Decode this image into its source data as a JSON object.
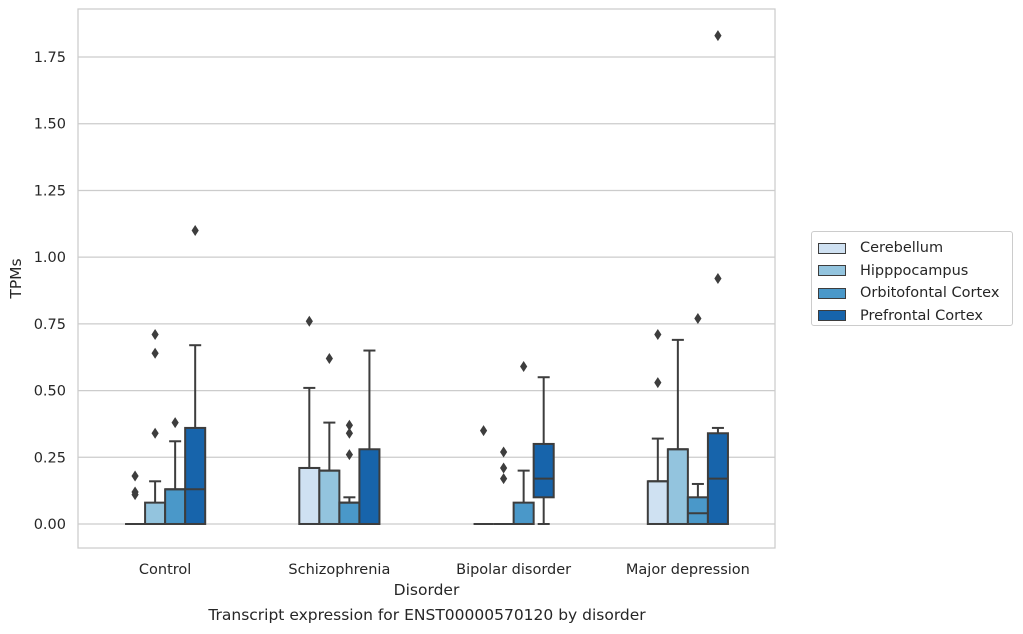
{
  "caption": "Transcript expression for ENST00000570120 by disorder",
  "legend": {
    "items": [
      {
        "label": "Cerebellum",
        "color": "#cfe1f2"
      },
      {
        "label": "Hipppocampus",
        "color": "#93c4de"
      },
      {
        "label": "Orbitofontal Cortex",
        "color": "#4a98c9"
      },
      {
        "label": "Prefrontal Cortex",
        "color": "#1764ab"
      }
    ]
  },
  "chart_data": {
    "type": "box",
    "xlabel": "Disorder",
    "ylabel": "TPMs",
    "ylim": [
      -0.09,
      1.93
    ],
    "yticks": [
      "0.00",
      "0.25",
      "0.50",
      "0.75",
      "1.00",
      "1.25",
      "1.50",
      "1.75"
    ],
    "categories": [
      "Control",
      "Schizophrenia",
      "Bipolar disorder",
      "Major depression"
    ],
    "grid": "horizontal",
    "legend_position": "right",
    "series": [
      {
        "name": "Cerebellum",
        "color": "#cfe1f2",
        "boxes": [
          {
            "q1": 0,
            "median": 0,
            "q3": 0,
            "whislo": 0,
            "whishi": 0,
            "fliers": [
              0.18,
              0.12,
              0.11
            ]
          },
          {
            "q1": 0,
            "median": 0.21,
            "q3": 0.21,
            "whislo": 0,
            "whishi": 0.51,
            "fliers": [
              0.76
            ]
          },
          {
            "q1": 0,
            "median": 0,
            "q3": 0,
            "whislo": 0,
            "whishi": 0,
            "fliers": [
              0.35
            ]
          },
          {
            "q1": 0,
            "median": 0.16,
            "q3": 0.16,
            "whislo": 0,
            "whishi": 0.32,
            "fliers": [
              0.71,
              0.53
            ]
          }
        ]
      },
      {
        "name": "Hipppocampus",
        "color": "#93c4de",
        "boxes": [
          {
            "q1": 0,
            "median": 0,
            "q3": 0.08,
            "whislo": 0,
            "whishi": 0.16,
            "fliers": [
              0.71,
              0.64,
              0.34
            ]
          },
          {
            "q1": 0,
            "median": 0.2,
            "q3": 0.2,
            "whislo": 0,
            "whishi": 0.38,
            "fliers": [
              0.62
            ]
          },
          {
            "q1": 0,
            "median": 0,
            "q3": 0,
            "whislo": 0,
            "whishi": 0,
            "fliers": [
              0.27,
              0.21,
              0.17
            ]
          },
          {
            "q1": 0,
            "median": 0.28,
            "q3": 0.28,
            "whislo": 0,
            "whishi": 0.69,
            "fliers": []
          }
        ]
      },
      {
        "name": "Orbitofontal Cortex",
        "color": "#4a98c9",
        "boxes": [
          {
            "q1": 0,
            "median": 0.13,
            "q3": 0.13,
            "whislo": 0,
            "whishi": 0.31,
            "fliers": [
              0.38
            ]
          },
          {
            "q1": 0,
            "median": 0.08,
            "q3": 0.08,
            "whislo": 0,
            "whishi": 0.1,
            "fliers": [
              0.37,
              0.34,
              0.26
            ]
          },
          {
            "q1": 0,
            "median": 0,
            "q3": 0.08,
            "whislo": 0,
            "whishi": 0.2,
            "fliers": [
              0.59
            ]
          },
          {
            "q1": 0,
            "median": 0.04,
            "q3": 0.1,
            "whislo": 0,
            "whishi": 0.15,
            "fliers": [
              0.77
            ]
          }
        ]
      },
      {
        "name": "Prefrontal Cortex",
        "color": "#1764ab",
        "boxes": [
          {
            "q1": 0,
            "median": 0.13,
            "q3": 0.36,
            "whislo": 0,
            "whishi": 0.67,
            "fliers": [
              1.1
            ]
          },
          {
            "q1": 0,
            "median": 0,
            "q3": 0.28,
            "whislo": 0,
            "whishi": 0.65,
            "fliers": []
          },
          {
            "q1": 0.1,
            "median": 0.17,
            "q3": 0.3,
            "whislo": 0,
            "whishi": 0.55,
            "fliers": []
          },
          {
            "q1": 0,
            "median": 0.17,
            "q3": 0.34,
            "whislo": 0,
            "whishi": 0.36,
            "fliers": [
              1.83,
              0.92
            ]
          }
        ]
      }
    ]
  }
}
